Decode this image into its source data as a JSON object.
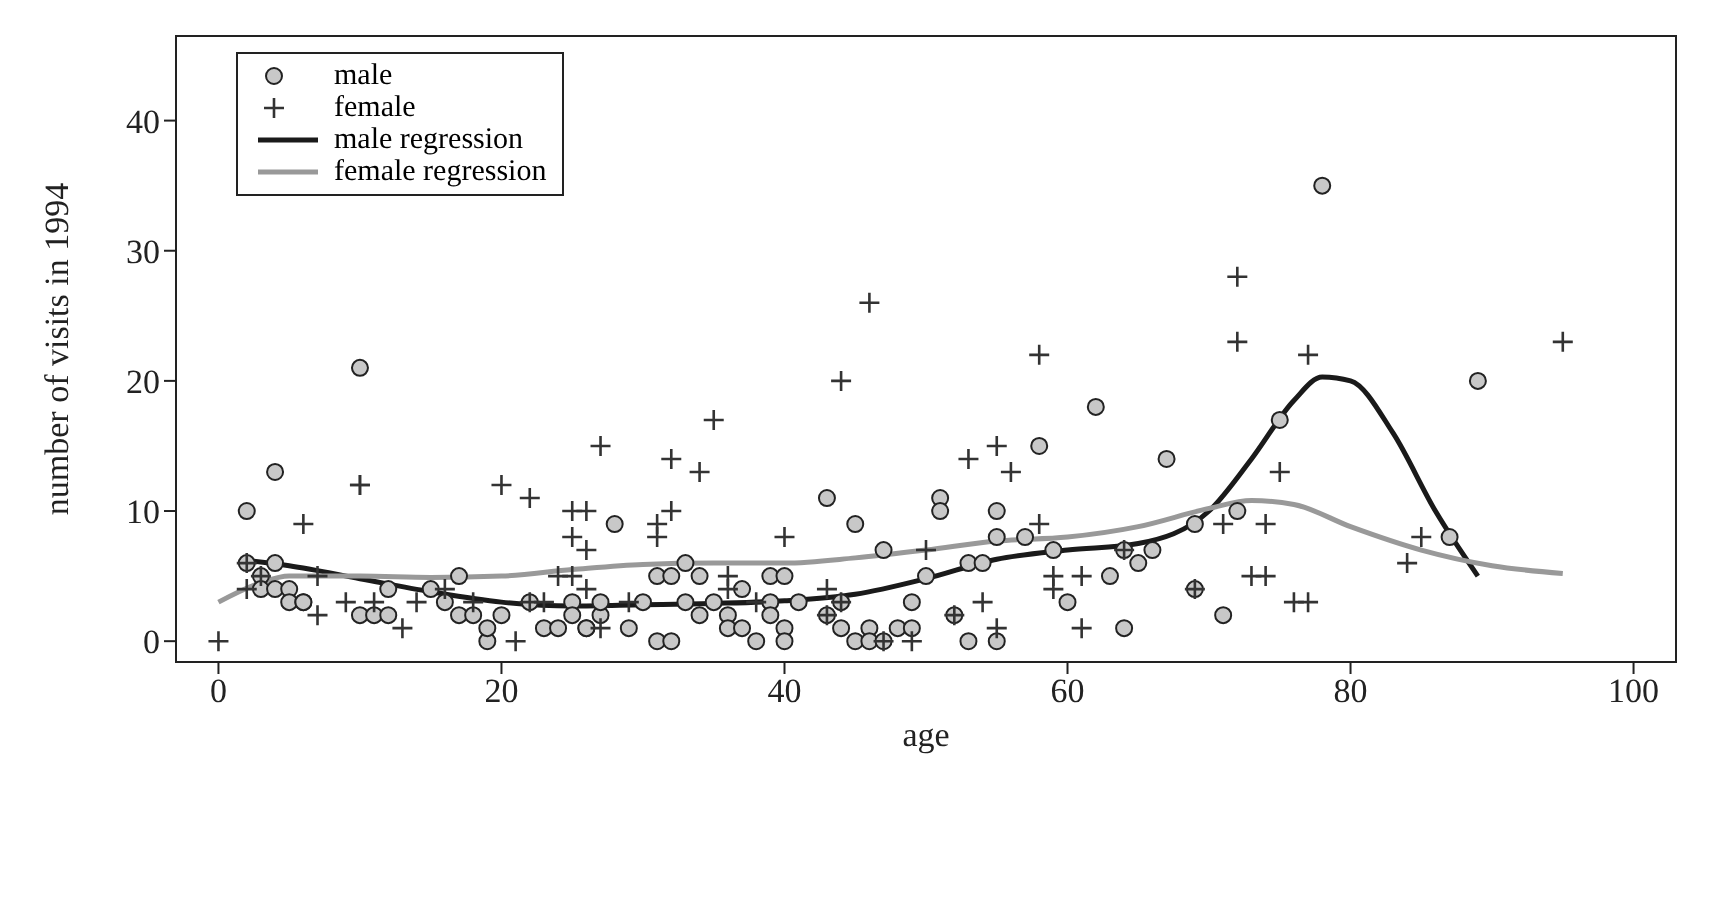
{
  "chart_data": {
    "type": "scatter",
    "xlabel": "age",
    "ylabel": "number of visits in 1994",
    "xlim": [
      -3,
      103
    ],
    "ylim": [
      -1.6,
      46.5
    ],
    "xticks": [
      0,
      20,
      40,
      60,
      80,
      100
    ],
    "yticks": [
      0,
      10,
      20,
      30,
      40
    ],
    "grid": false,
    "legend": "top left",
    "series": [
      {
        "name": "male",
        "marker": "circle",
        "color": "#c8c8c8",
        "x": [
          2,
          2,
          3,
          3,
          4,
          4,
          4,
          5,
          5,
          6,
          6,
          10,
          10,
          11,
          12,
          12,
          15,
          16,
          17,
          17,
          18,
          19,
          19,
          20,
          22,
          23,
          24,
          25,
          25,
          26,
          26,
          27,
          27,
          28,
          29,
          30,
          31,
          31,
          32,
          32,
          33,
          33,
          34,
          34,
          35,
          36,
          36,
          37,
          37,
          38,
          39,
          39,
          39,
          40,
          40,
          40,
          41,
          43,
          43,
          44,
          44,
          45,
          45,
          46,
          46,
          47,
          47,
          48,
          49,
          49,
          50,
          51,
          51,
          52,
          53,
          53,
          54,
          55,
          55,
          55,
          57,
          58,
          59,
          60,
          62,
          63,
          64,
          64,
          65,
          66,
          67,
          69,
          69,
          71,
          72,
          75,
          78,
          87,
          89
        ],
        "values": [
          10,
          6,
          5,
          4,
          13,
          6,
          4,
          4,
          3,
          3,
          3,
          21,
          2,
          2,
          4,
          2,
          4,
          3,
          5,
          2,
          2,
          0,
          1,
          2,
          3,
          1,
          1,
          3,
          2,
          1,
          1,
          2,
          3,
          9,
          1,
          3,
          0,
          5,
          5,
          0,
          6,
          3,
          5,
          2,
          3,
          2,
          1,
          4,
          1,
          0,
          5,
          3,
          2,
          5,
          1,
          0,
          3,
          2,
          11,
          3,
          1,
          9,
          0,
          1,
          0,
          7,
          0,
          1,
          1,
          3,
          5,
          11,
          10,
          2,
          6,
          0,
          6,
          10,
          8,
          0,
          8,
          15,
          7,
          3,
          18,
          5,
          1,
          7,
          6,
          7,
          14,
          4,
          9,
          2,
          10,
          17,
          35,
          8,
          20
        ]
      },
      {
        "name": "female",
        "marker": "cross",
        "color": "#333333",
        "x": [
          0,
          2,
          2,
          3,
          6,
          7,
          7,
          9,
          10,
          10,
          11,
          13,
          14,
          16,
          18,
          20,
          21,
          22,
          22,
          23,
          24,
          25,
          25,
          25,
          26,
          26,
          26,
          27,
          27,
          29,
          31,
          31,
          32,
          32,
          34,
          35,
          36,
          36,
          38,
          40,
          43,
          43,
          44,
          46,
          44,
          47,
          49,
          50,
          52,
          53,
          54,
          55,
          56,
          55,
          58,
          58,
          59,
          59,
          61,
          61,
          64,
          69,
          71,
          72,
          72,
          73,
          74,
          74,
          75,
          76,
          77,
          77,
          84,
          85,
          95
        ],
        "values": [
          0,
          6,
          4,
          5,
          9,
          5,
          2,
          3,
          12,
          12,
          3,
          1,
          3,
          4,
          3,
          12,
          0,
          11,
          3,
          3,
          5,
          10,
          8,
          5,
          10,
          7,
          4,
          15,
          1,
          3,
          9,
          8,
          14,
          10,
          13,
          17,
          5,
          4,
          3,
          8,
          4,
          2,
          20,
          26,
          3,
          0,
          0,
          7,
          2,
          14,
          3,
          15,
          13,
          1,
          22,
          9,
          4,
          5,
          1,
          5,
          7,
          4,
          9,
          28,
          23,
          5,
          5,
          9,
          13,
          3,
          3,
          22,
          6,
          8,
          23
        ]
      },
      {
        "name": "male regression",
        "type": "line",
        "marker": "none",
        "color": "#1a1a1a",
        "x": [
          2,
          5,
          10,
          15,
          20,
          25,
          30,
          35,
          40,
          45,
          50,
          55,
          60,
          65,
          70,
          73,
          76,
          78,
          80,
          83,
          86,
          89
        ],
        "values": [
          6.2,
          5.8,
          4.8,
          3.8,
          3.0,
          2.7,
          2.8,
          2.9,
          3.1,
          3.6,
          4.8,
          6.3,
          7.0,
          7.5,
          10,
          14,
          18.5,
          20.3,
          20,
          16,
          10,
          5
        ]
      },
      {
        "name": "female regression",
        "type": "line",
        "marker": "none",
        "color": "#999999",
        "x": [
          0,
          3,
          5,
          10,
          15,
          20,
          25,
          30,
          35,
          40,
          45,
          50,
          55,
          60,
          65,
          70,
          73,
          76,
          80,
          85,
          90,
          95
        ],
        "values": [
          3.0,
          4.5,
          5.0,
          5.0,
          4.9,
          5.0,
          5.5,
          5.9,
          6.0,
          6.0,
          6.4,
          7.0,
          7.7,
          8.0,
          8.8,
          10.2,
          10.8,
          10.5,
          8.8,
          7.0,
          5.8,
          5.2
        ]
      }
    ]
  }
}
